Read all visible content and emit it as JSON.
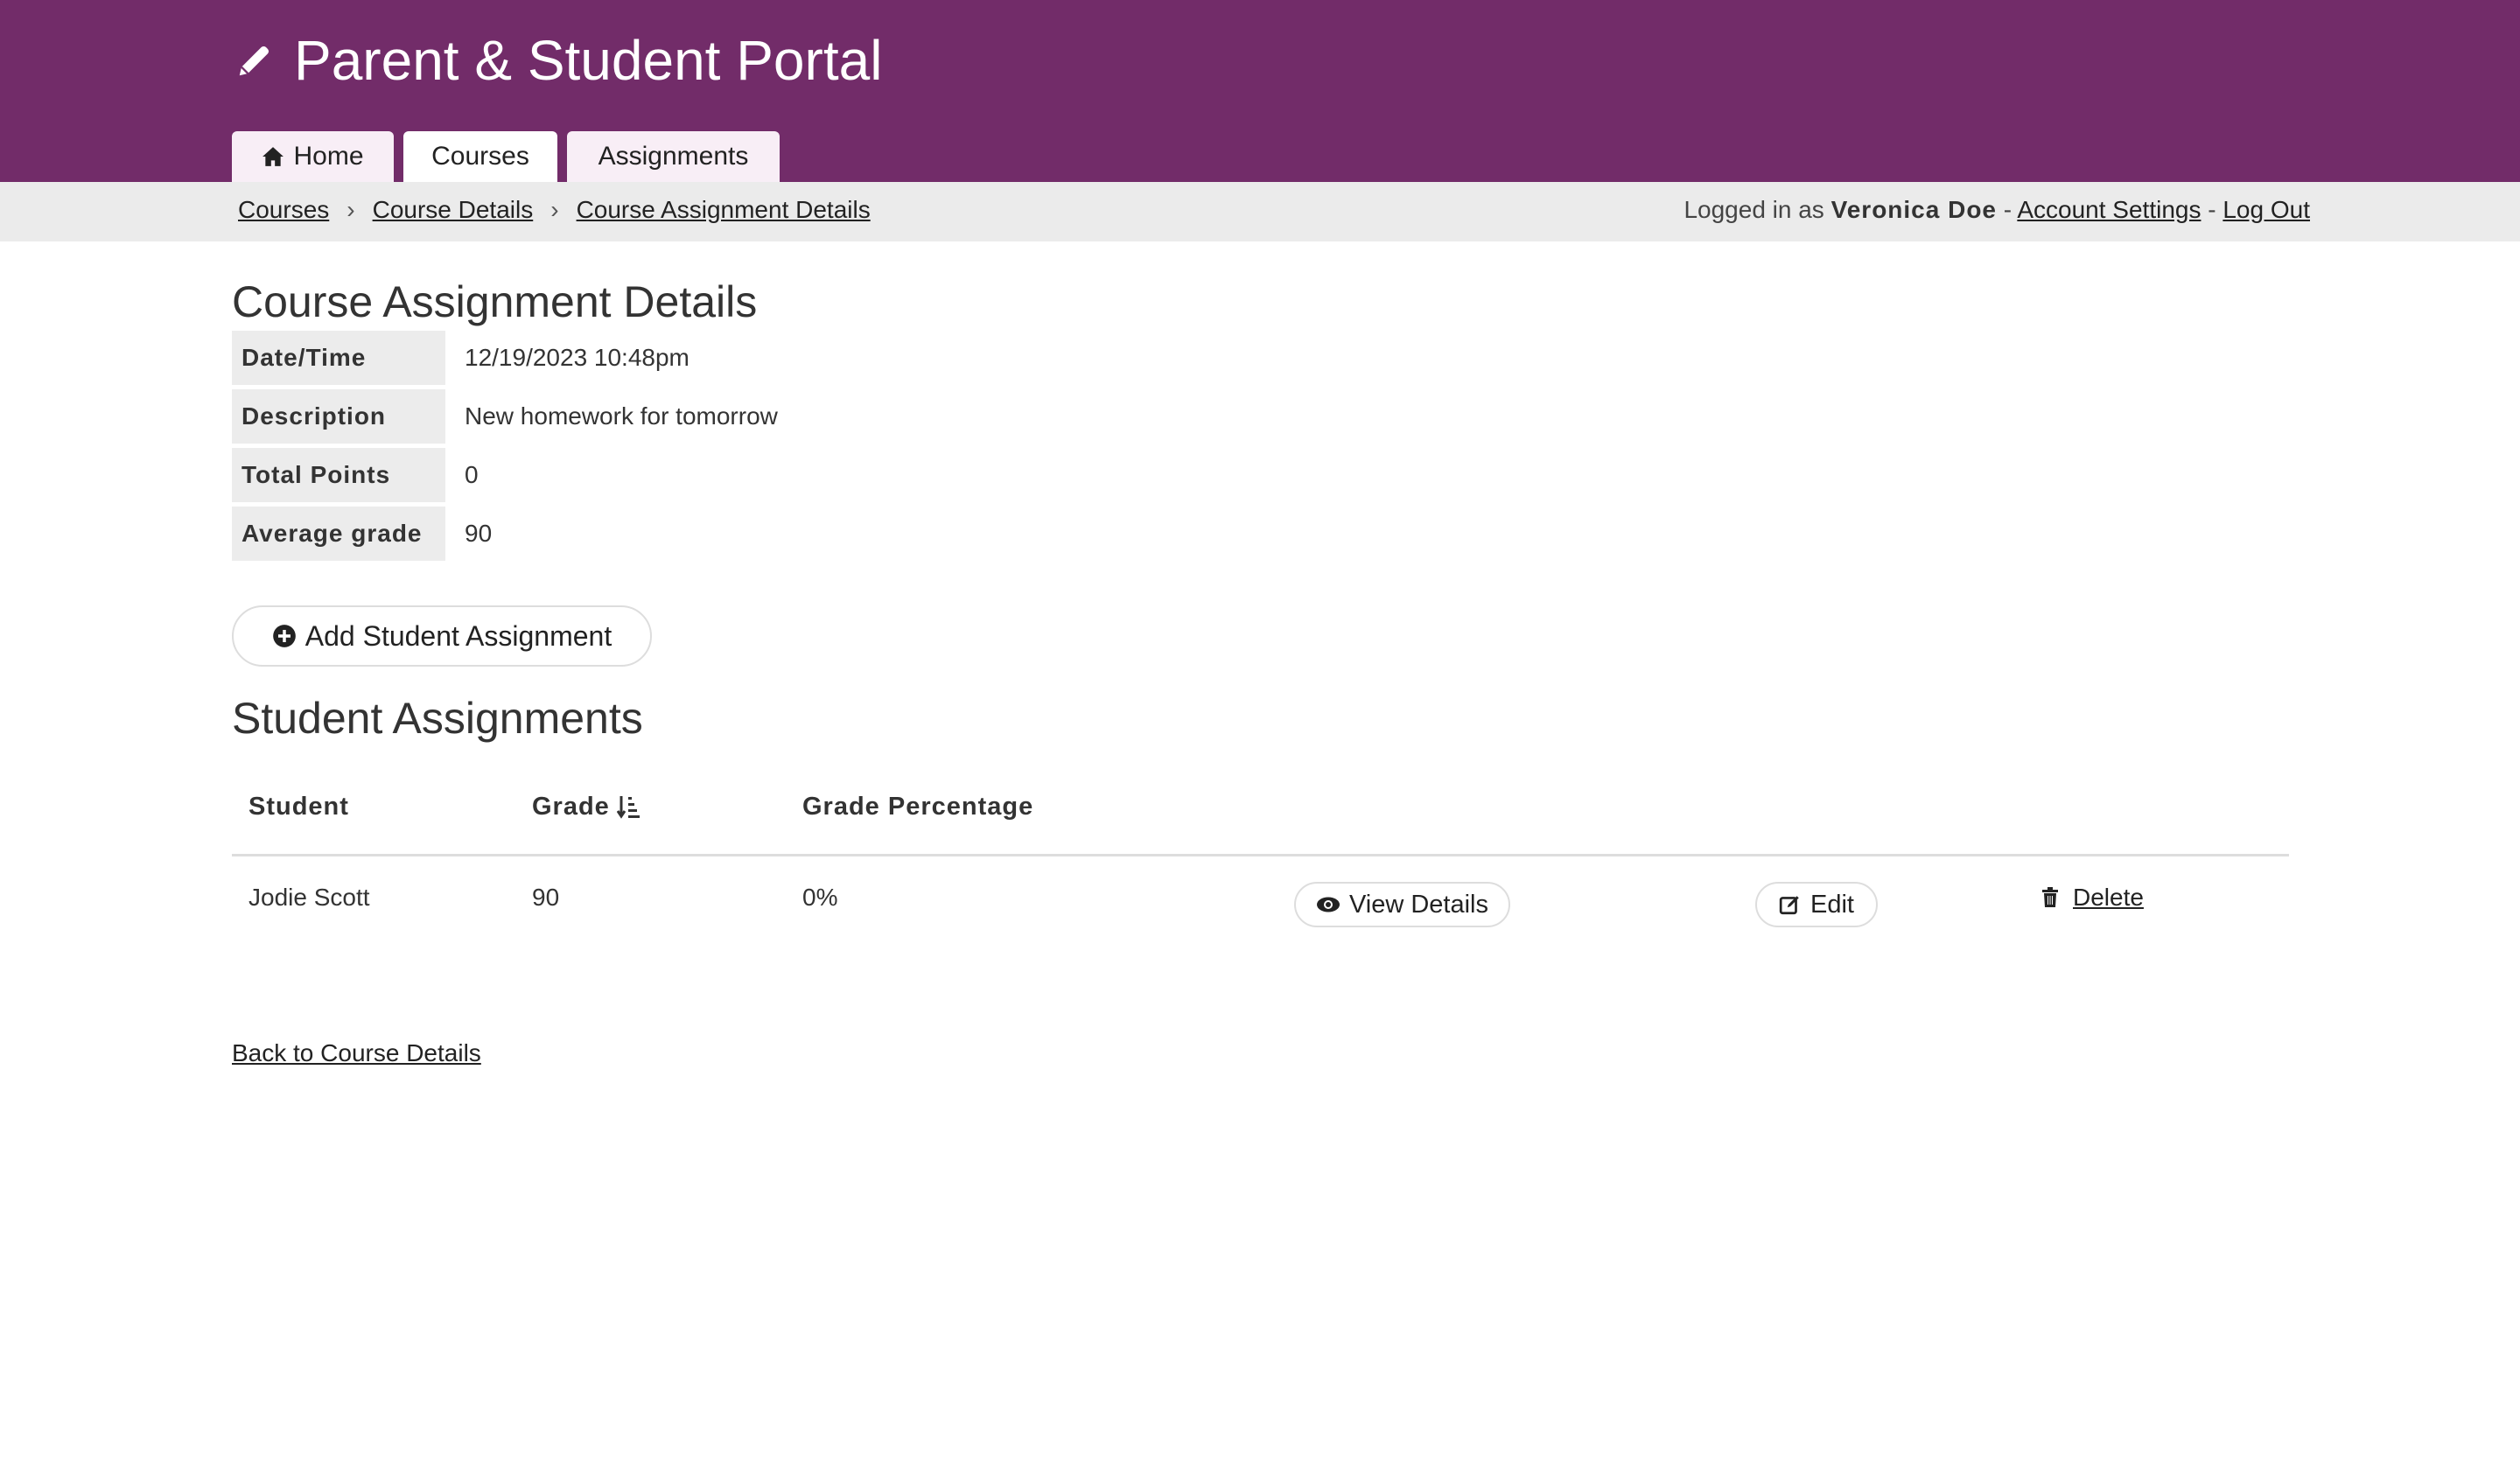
{
  "header": {
    "title": "Parent & Student Portal",
    "brand_color": "#722c69",
    "icon": "pencil-icon"
  },
  "tabs": [
    {
      "label": "Home",
      "icon": "home-icon"
    },
    {
      "label": "Courses",
      "active": true
    },
    {
      "label": "Assignments"
    }
  ],
  "breadcrumb": [
    "Courses",
    "Course Details",
    "Course Assignment Details"
  ],
  "user": {
    "prefix": "Logged in as",
    "name": "Veronica Doe",
    "sep": "-",
    "account_settings": "Account Settings",
    "logout": "Log Out"
  },
  "details": {
    "title": "Course Assignment Details",
    "rows": [
      {
        "label": "Date/Time",
        "value": "12/19/2023 10:48pm"
      },
      {
        "label": "Description",
        "value": "New homework for tomorrow"
      },
      {
        "label": "Total Points",
        "value": "0"
      },
      {
        "label": "Average grade",
        "value": "90"
      }
    ]
  },
  "add_button": "Add Student Assignment",
  "student_assignments": {
    "title": "Student Assignments",
    "columns": [
      "Student",
      "Grade",
      "Grade Percentage"
    ],
    "rows": [
      {
        "student": "Jodie Scott",
        "grade": "90",
        "percentage": "0%",
        "view": "View Details",
        "edit": "Edit",
        "delete": "Delete"
      }
    ]
  },
  "back_link": "Back to Course Details"
}
